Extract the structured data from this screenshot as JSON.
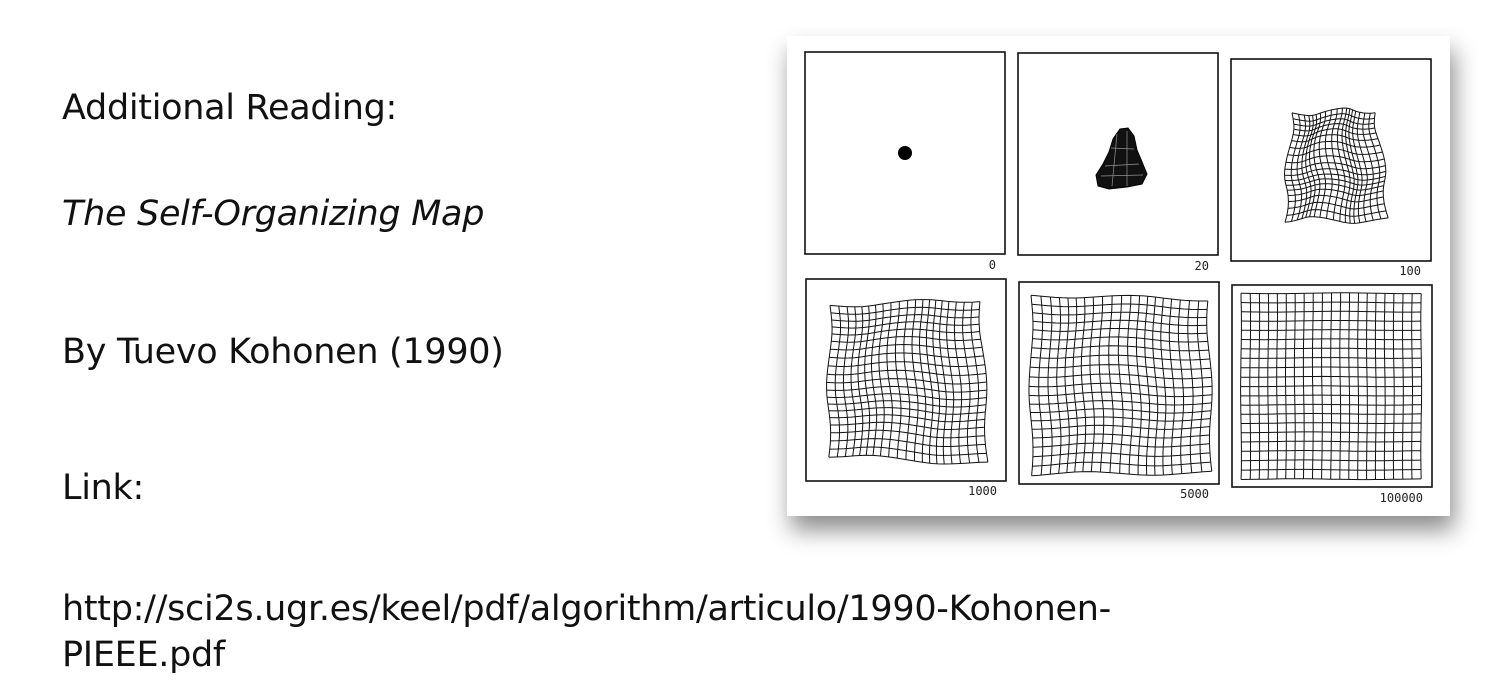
{
  "slide": {
    "heading": "Additional Reading:",
    "title": "The Self-Organizing Map",
    "author": "By Tuevo Kohonen (1990)",
    "link_label": "Link:",
    "url": "http://sci2s.ugr.es/keel/pdf/algorithm/articulo/1990-Kohonen-PIEEE.pdf"
  },
  "figure": {
    "panels": [
      {
        "label": "0",
        "stage": "point"
      },
      {
        "label": "20",
        "stage": "clump"
      },
      {
        "label": "100",
        "stage": "small-grid"
      },
      {
        "label": "1000",
        "stage": "grid"
      },
      {
        "label": "5000",
        "stage": "grid"
      },
      {
        "label": "100000",
        "stage": "grid"
      }
    ]
  }
}
